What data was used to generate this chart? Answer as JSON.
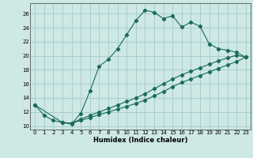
{
  "xlabel": "Humidex (Indice chaleur)",
  "background_color": "#cde8e5",
  "grid_color": "#aacfcc",
  "line_color": "#1a6b5a",
  "xlim": [
    -0.5,
    23.5
  ],
  "ylim": [
    9.5,
    27.5
  ],
  "xticks": [
    0,
    1,
    2,
    3,
    4,
    5,
    6,
    7,
    8,
    9,
    10,
    11,
    12,
    13,
    14,
    15,
    16,
    17,
    18,
    19,
    20,
    21,
    22,
    23
  ],
  "yticks": [
    10,
    12,
    14,
    16,
    18,
    20,
    22,
    24,
    26
  ],
  "line1_x": [
    0,
    1,
    2,
    3,
    4,
    5,
    6,
    7,
    8,
    9,
    10,
    11,
    12,
    13,
    14,
    15,
    16,
    17,
    18,
    19,
    20,
    21,
    22,
    23
  ],
  "line1_y": [
    13.0,
    11.5,
    10.8,
    10.5,
    10.3,
    11.8,
    15.0,
    18.5,
    19.5,
    21.0,
    23.0,
    25.0,
    26.5,
    26.2,
    25.3,
    25.7,
    24.1,
    24.8,
    24.2,
    21.7,
    21.0,
    20.8,
    20.5,
    19.8
  ],
  "line2_x": [
    0,
    3,
    4,
    5,
    6,
    7,
    8,
    9,
    10,
    11,
    12,
    13,
    14,
    15,
    16,
    17,
    18,
    19,
    20,
    21,
    22,
    23
  ],
  "line2_y": [
    13.0,
    10.5,
    10.4,
    11.0,
    11.5,
    12.0,
    12.5,
    13.0,
    13.5,
    14.0,
    14.6,
    15.3,
    16.0,
    16.7,
    17.3,
    17.8,
    18.3,
    18.8,
    19.3,
    19.7,
    20.1,
    19.8
  ],
  "line3_x": [
    3,
    4,
    5,
    6,
    7,
    8,
    9,
    10,
    11,
    12,
    13,
    14,
    15,
    16,
    17,
    18,
    19,
    20,
    21,
    22,
    23
  ],
  "line3_y": [
    10.5,
    10.4,
    10.8,
    11.2,
    11.6,
    12.0,
    12.4,
    12.8,
    13.2,
    13.7,
    14.3,
    14.9,
    15.6,
    16.2,
    16.7,
    17.2,
    17.7,
    18.2,
    18.7,
    19.2,
    19.8
  ]
}
